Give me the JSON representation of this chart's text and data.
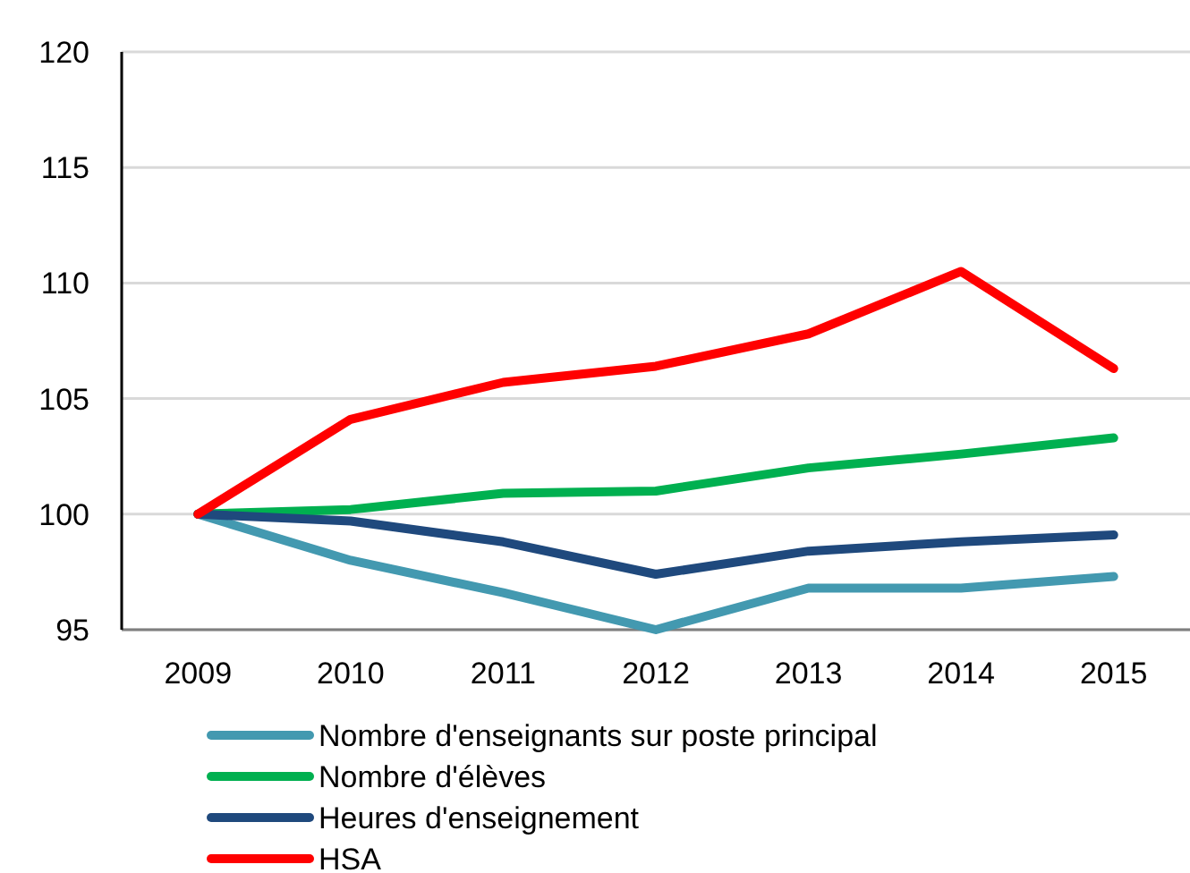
{
  "chart_data": {
    "type": "line",
    "categories": [
      "2009",
      "2010",
      "2011",
      "2012",
      "2013",
      "2014",
      "2015"
    ],
    "series": [
      {
        "name": "Nombre d'enseignants sur poste principal",
        "color": "#4399b0",
        "values": [
          100,
          98.0,
          96.6,
          95.0,
          96.8,
          96.8,
          97.3
        ]
      },
      {
        "name": "Nombre d'élèves",
        "color": "#00b050",
        "values": [
          100,
          100.2,
          100.9,
          101.0,
          102.0,
          102.6,
          103.3
        ]
      },
      {
        "name": "Heures d'enseignement",
        "color": "#1f497d",
        "values": [
          100,
          99.7,
          98.8,
          97.4,
          98.4,
          98.8,
          99.1
        ]
      },
      {
        "name": "HSA",
        "color": "#ff0000",
        "values": [
          100,
          104.1,
          105.7,
          106.4,
          107.8,
          110.5,
          106.3
        ]
      }
    ],
    "ylim": [
      95,
      120
    ],
    "yticks": [
      95,
      100,
      105,
      110,
      115,
      120
    ],
    "grid": "y",
    "legend": "bottom",
    "marker": "none",
    "line_style": "solid"
  }
}
